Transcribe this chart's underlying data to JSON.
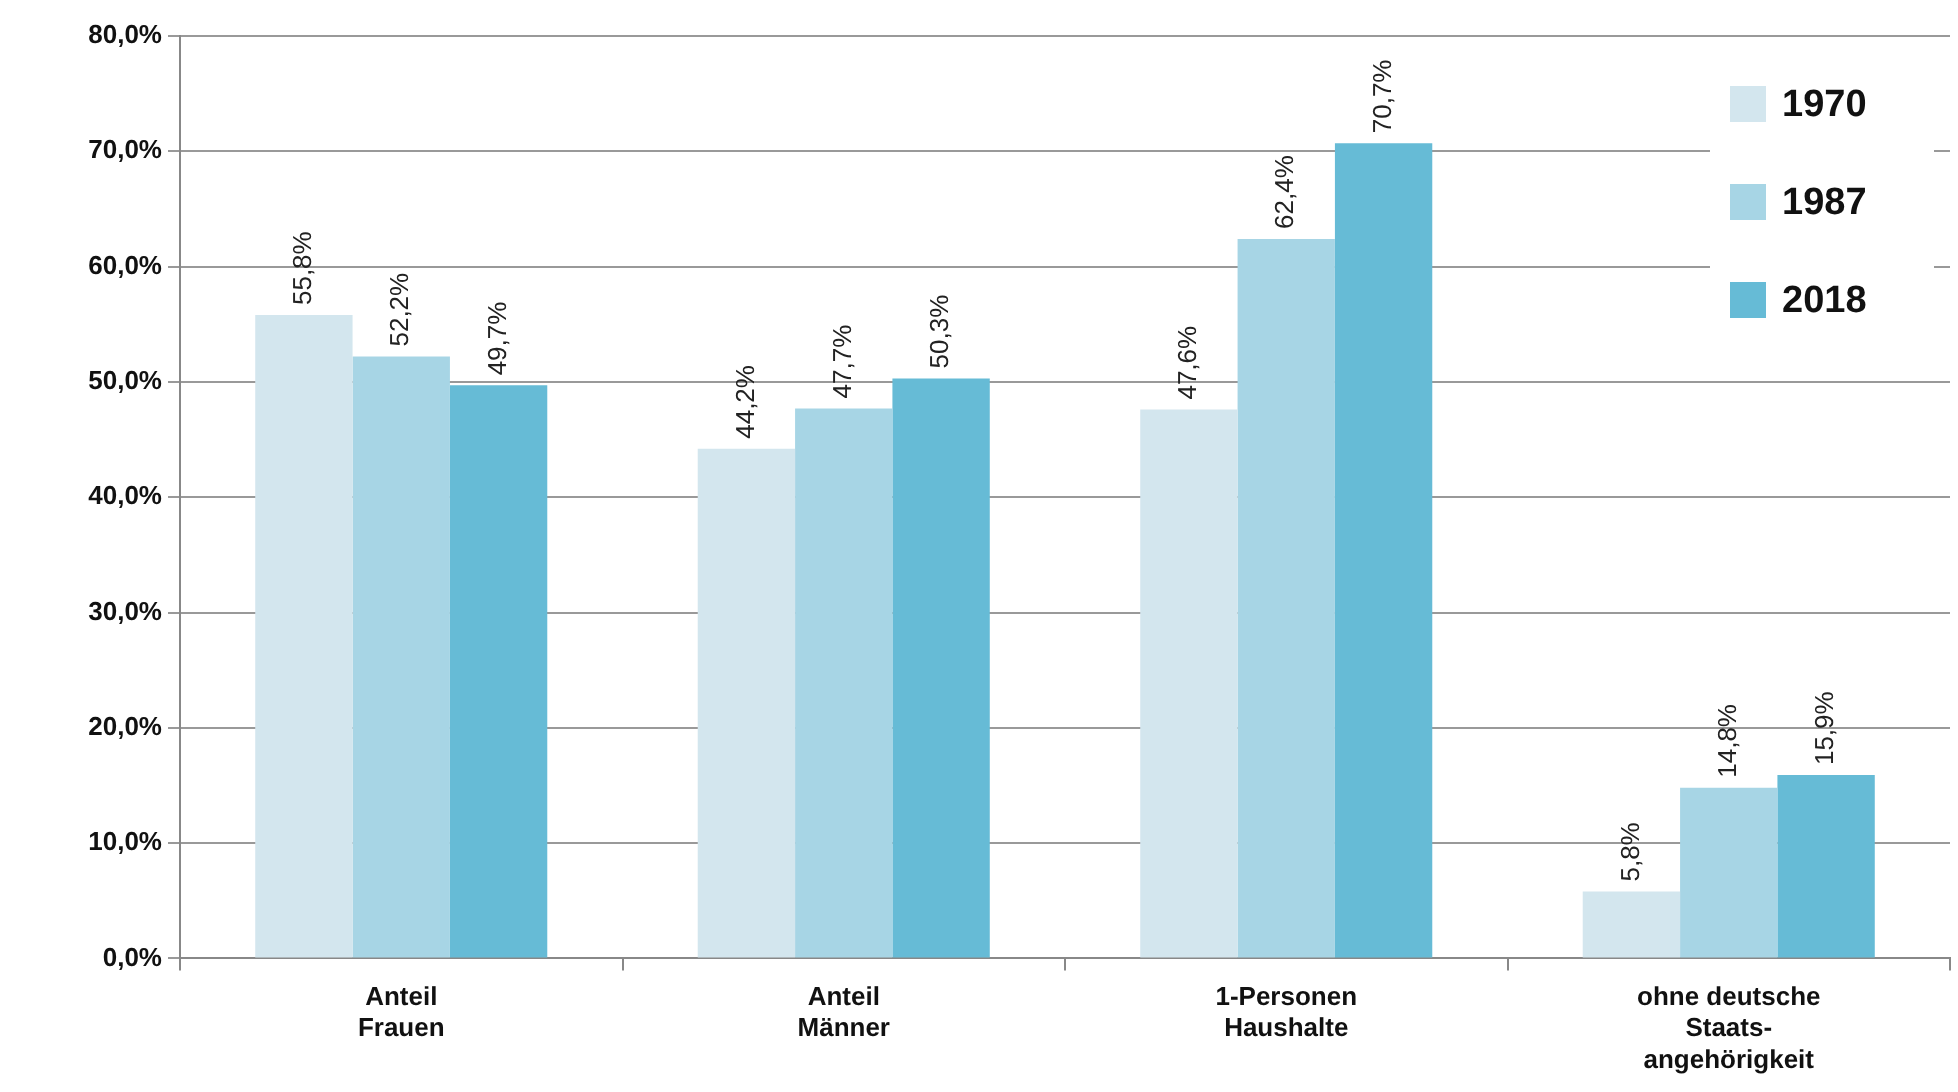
{
  "chart_data": {
    "type": "bar",
    "categories": [
      "Anteil\nFrauen",
      "Anteil\nMänner",
      "1-Personen\nHaushalte",
      "ohne deutsche\nStaats-\nangehörigkeit"
    ],
    "series": [
      {
        "name": "1970",
        "color": "#d3e6ee",
        "values": [
          55.8,
          44.2,
          47.6,
          5.8
        ],
        "value_labels": [
          "55,8%",
          "44,2%",
          "47,6%",
          "5,8%"
        ]
      },
      {
        "name": "1987",
        "color": "#a7d5e5",
        "values": [
          52.2,
          47.7,
          62.4,
          14.8
        ],
        "value_labels": [
          "52,2%",
          "47,7%",
          "62,4%",
          "14,8%"
        ]
      },
      {
        "name": "2018",
        "color": "#66bbd6",
        "values": [
          49.7,
          50.3,
          70.7,
          15.9
        ],
        "value_labels": [
          "49,7%",
          "50,3%",
          "70,7%",
          "15,9%"
        ]
      }
    ],
    "ylim": [
      0,
      80
    ],
    "yticks": [
      {
        "value": 0,
        "label": "0,0%"
      },
      {
        "value": 10,
        "label": "10,0%"
      },
      {
        "value": 20,
        "label": "20,0%"
      },
      {
        "value": 30,
        "label": "30,0%"
      },
      {
        "value": 40,
        "label": "40,0%"
      },
      {
        "value": 50,
        "label": "50,0%"
      },
      {
        "value": 60,
        "label": "60,0%"
      },
      {
        "value": 70,
        "label": "70,0%"
      },
      {
        "value": 80,
        "label": "80,0%"
      }
    ],
    "grid": "y",
    "legend": "top right"
  }
}
